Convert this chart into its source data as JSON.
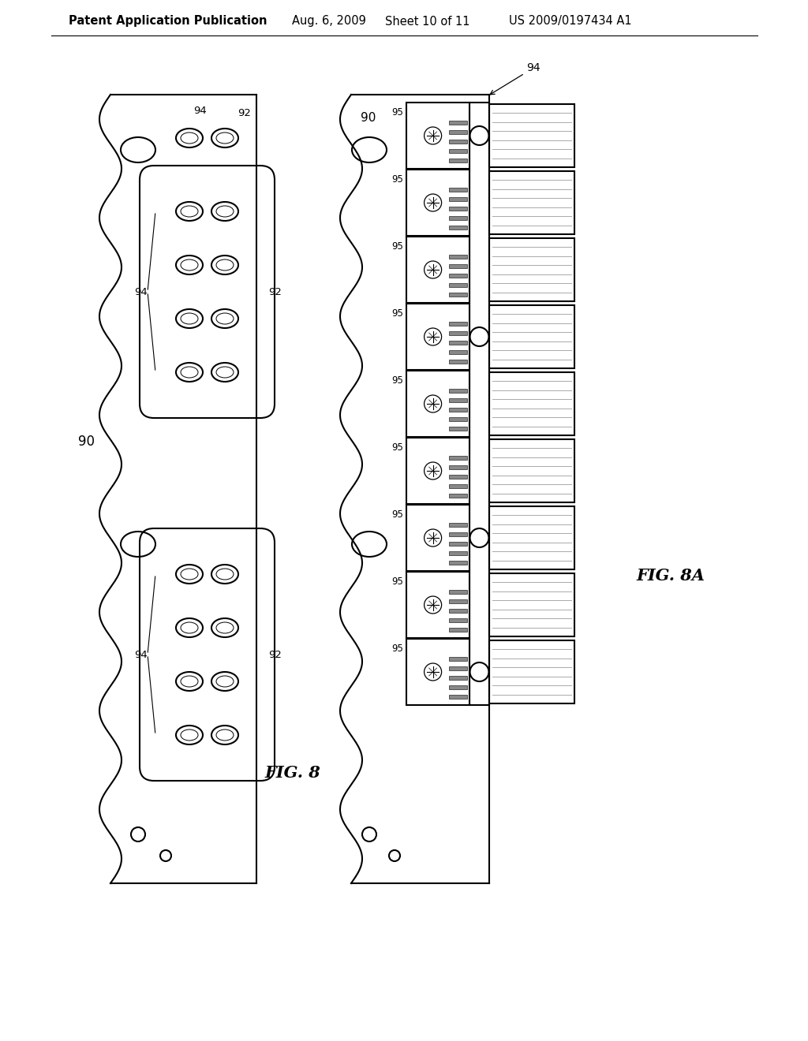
{
  "background_color": "#ffffff",
  "header_text": "Patent Application Publication",
  "header_date": "Aug. 6, 2009",
  "header_sheet": "Sheet 10 of 11",
  "header_patent": "US 2009/0197434 A1",
  "fig8_label": "FIG. 8",
  "fig8a_label": "FIG. 8A",
  "label_90": "90",
  "label_92": "92",
  "label_94": "94",
  "label_95": "95",
  "line_color": "#000000",
  "line_width": 1.5,
  "fig_label_fontsize": 15,
  "header_fontsize": 10.5
}
